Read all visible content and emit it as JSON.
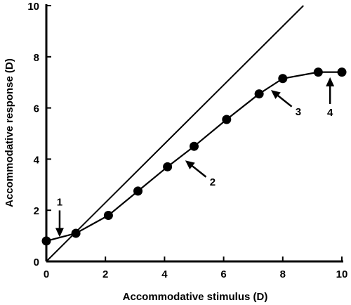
{
  "chart_data": {
    "type": "line",
    "xlabel": "Accommodative stimulus  (D)",
    "ylabel": "Accommodative response  (D)",
    "xlim": [
      0,
      10
    ],
    "ylim": [
      0,
      10
    ],
    "xticks": [
      "0",
      "2",
      "4",
      "6",
      "8",
      "10"
    ],
    "yticks": [
      "0",
      "2",
      "4",
      "6",
      "8",
      "10"
    ],
    "grid": false,
    "legend": "none",
    "series": [
      {
        "points": [
          [
            0,
            0.8
          ],
          [
            1,
            1.1
          ],
          [
            2.1,
            1.8
          ],
          [
            3.1,
            2.75
          ],
          [
            4.1,
            3.7
          ],
          [
            5,
            4.5
          ],
          [
            6.1,
            5.55
          ],
          [
            7.2,
            6.55
          ],
          [
            8,
            7.15
          ],
          [
            9.2,
            7.4
          ],
          [
            10,
            7.4
          ]
        ]
      }
    ],
    "reference_line": {
      "from": [
        0,
        0
      ],
      "to": [
        8.7,
        10
      ]
    },
    "annotations": [
      {
        "label": "1",
        "target": [
          0.45,
          0.95
        ],
        "direction": "down"
      },
      {
        "label": "2",
        "target": [
          4.7,
          3.95
        ],
        "direction": "up-left"
      },
      {
        "label": "3",
        "target": [
          7.6,
          6.7
        ],
        "direction": "up-left"
      },
      {
        "label": "4",
        "target": [
          9.6,
          7.2
        ],
        "direction": "up"
      }
    ],
    "colors": {
      "line": "#000000",
      "marker": "#000000",
      "background": "#ffffff"
    }
  }
}
